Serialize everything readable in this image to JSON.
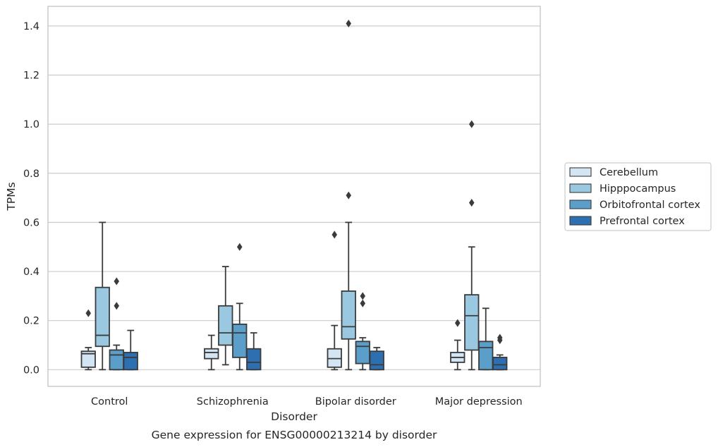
{
  "chart_data": {
    "type": "boxplot",
    "title": "",
    "caption": "Gene expression for ENSG00000213214 by disorder",
    "xlabel": "Disorder",
    "ylabel": "TPMs",
    "ylim": [
      -0.068,
      1.48
    ],
    "yticks": [
      0.0,
      0.2,
      0.4,
      0.6,
      0.8,
      1.0,
      1.2,
      1.4
    ],
    "ytick_labels": [
      "0.0",
      "0.2",
      "0.4",
      "0.6",
      "0.8",
      "1.0",
      "1.2",
      "1.4"
    ],
    "grid": "horizontal",
    "legend_position": "outside right",
    "categories": [
      "Control",
      "Schizophrenia",
      "Bipolar disorder",
      "Major depression"
    ],
    "series": [
      {
        "name": "Cerebellum",
        "color": "#d3e4f3",
        "boxes": [
          {
            "whislo": 0.0,
            "q1": 0.01,
            "med": 0.065,
            "q3": 0.075,
            "whishi": 0.09,
            "fliers": [
              0.23
            ]
          },
          {
            "whislo": 0.0,
            "q1": 0.045,
            "med": 0.07,
            "q3": 0.085,
            "whishi": 0.14,
            "fliers": []
          },
          {
            "whislo": 0.0,
            "q1": 0.01,
            "med": 0.045,
            "q3": 0.085,
            "whishi": 0.18,
            "fliers": [
              0.55
            ]
          },
          {
            "whislo": 0.0,
            "q1": 0.03,
            "med": 0.05,
            "q3": 0.07,
            "whishi": 0.12,
            "fliers": [
              0.19
            ]
          }
        ]
      },
      {
        "name": "Hipppocampus",
        "color": "#9ac8e0",
        "boxes": [
          {
            "whislo": 0.0,
            "q1": 0.095,
            "med": 0.14,
            "q3": 0.335,
            "whishi": 0.6,
            "fliers": []
          },
          {
            "whislo": 0.02,
            "q1": 0.1,
            "med": 0.15,
            "q3": 0.26,
            "whishi": 0.42,
            "fliers": []
          },
          {
            "whislo": 0.0,
            "q1": 0.125,
            "med": 0.175,
            "q3": 0.32,
            "whishi": 0.6,
            "fliers": [
              0.71,
              1.41
            ]
          },
          {
            "whislo": 0.0,
            "q1": 0.08,
            "med": 0.22,
            "q3": 0.305,
            "whishi": 0.5,
            "fliers": [
              0.68,
              1.0
            ]
          }
        ]
      },
      {
        "name": "Orbitofrontal cortex",
        "color": "#5a9ec9",
        "boxes": [
          {
            "whislo": 0.0,
            "q1": 0.0,
            "med": 0.06,
            "q3": 0.08,
            "whishi": 0.1,
            "fliers": [
              0.26,
              0.36
            ]
          },
          {
            "whislo": 0.0,
            "q1": 0.05,
            "med": 0.15,
            "q3": 0.185,
            "whishi": 0.27,
            "fliers": [
              0.5
            ]
          },
          {
            "whislo": 0.0,
            "q1": 0.025,
            "med": 0.095,
            "q3": 0.115,
            "whishi": 0.13,
            "fliers": [
              0.27,
              0.3
            ]
          },
          {
            "whislo": 0.0,
            "q1": 0.0,
            "med": 0.09,
            "q3": 0.115,
            "whishi": 0.25,
            "fliers": []
          }
        ]
      },
      {
        "name": "Prefrontal cortex",
        "color": "#2d6fb0",
        "boxes": [
          {
            "whislo": 0.0,
            "q1": 0.0,
            "med": 0.05,
            "q3": 0.07,
            "whishi": 0.16,
            "fliers": []
          },
          {
            "whislo": 0.0,
            "q1": 0.0,
            "med": 0.03,
            "q3": 0.085,
            "whishi": 0.15,
            "fliers": []
          },
          {
            "whislo": 0.0,
            "q1": 0.0,
            "med": 0.02,
            "q3": 0.075,
            "whishi": 0.09,
            "fliers": []
          },
          {
            "whislo": 0.0,
            "q1": 0.0,
            "med": 0.02,
            "q3": 0.05,
            "whishi": 0.06,
            "fliers": [
              0.12,
              0.13
            ]
          }
        ]
      }
    ],
    "line_color": "#3b3b3b",
    "grid_color": "#cccccc",
    "spine_color": "#cccccc"
  }
}
